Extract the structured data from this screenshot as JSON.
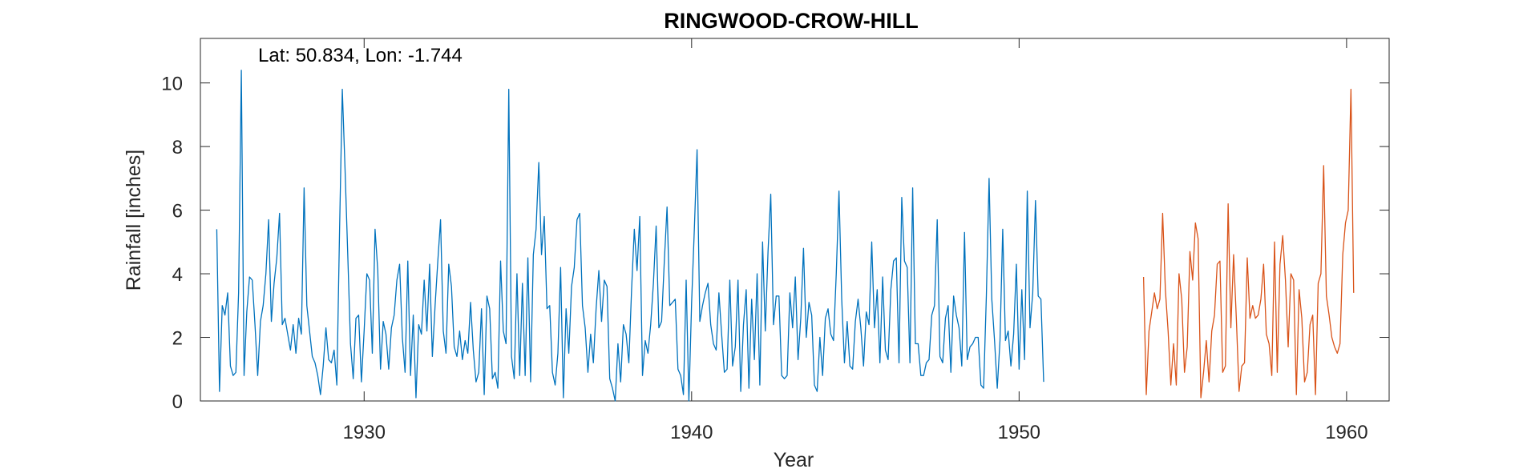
{
  "chart_data": {
    "type": "line",
    "title": "RINGWOOD-CROW-HILL",
    "annotation": "Lat: 50.834, Lon: -1.744",
    "xlabel": "Year",
    "ylabel": "Rainfall [inches]",
    "xlim": [
      1925,
      1961.3
    ],
    "ylim": [
      0,
      11.4
    ],
    "xticks": [
      1930,
      1940,
      1950,
      1960
    ],
    "yticks": [
      0,
      2,
      4,
      6,
      8,
      10
    ],
    "grid": false,
    "series": [
      {
        "color": "#0072BD",
        "x_start": 1925.5,
        "x_step": 0.0833333,
        "values": [
          5.4,
          0.3,
          3.0,
          2.7,
          3.4,
          1.1,
          0.8,
          0.9,
          3.4,
          10.4,
          0.8,
          2.8,
          3.9,
          3.8,
          2.4,
          0.8,
          2.5,
          3.0,
          4.0,
          5.7,
          2.5,
          3.7,
          4.5,
          5.9,
          2.4,
          2.6,
          2.1,
          1.6,
          2.4,
          1.5,
          2.6,
          2.1,
          6.7,
          3.0,
          2.2,
          1.4,
          1.2,
          0.8,
          0.2,
          1.1,
          2.3,
          1.3,
          1.2,
          1.6,
          0.5,
          5.4,
          9.8,
          7.3,
          4.6,
          1.8,
          0.7,
          2.6,
          2.7,
          0.6,
          2.2,
          4.0,
          3.8,
          1.5,
          5.4,
          4.1,
          1.0,
          2.5,
          2.1,
          1.0,
          2.3,
          2.7,
          3.8,
          4.3,
          2.0,
          0.9,
          4.4,
          0.8,
          2.7,
          0.1,
          2.4,
          2.1,
          3.8,
          2.2,
          4.3,
          1.4,
          3.0,
          4.4,
          5.7,
          2.2,
          1.5,
          4.3,
          3.6,
          1.7,
          1.4,
          2.2,
          1.3,
          1.9,
          1.5,
          3.1,
          1.6,
          0.6,
          0.9,
          2.9,
          0.2,
          3.3,
          2.9,
          0.7,
          0.9,
          0.4,
          4.4,
          2.2,
          1.8,
          9.8,
          1.4,
          0.7,
          4.0,
          0.8,
          3.7,
          0.8,
          4.5,
          0.6,
          4.6,
          5.4,
          7.5,
          4.6,
          5.8,
          2.9,
          3.0,
          0.9,
          0.5,
          1.5,
          4.2,
          0.1,
          2.9,
          1.5,
          3.6,
          4.2,
          5.7,
          5.9,
          3.0,
          2.3,
          0.9,
          2.1,
          1.2,
          2.9,
          4.1,
          2.5,
          3.8,
          3.6,
          0.7,
          0.4,
          0.0,
          1.8,
          0.6,
          2.4,
          2.1,
          1.2,
          3.5,
          5.4,
          4.1,
          5.8,
          0.8,
          1.9,
          1.5,
          2.4,
          3.7,
          5.5,
          2.3,
          2.5,
          4.4,
          6.1,
          3.0,
          3.1,
          3.2,
          1.0,
          0.8,
          0.2,
          3.8,
          0.0,
          3.1,
          5.4,
          7.9,
          2.5,
          3.0,
          3.4,
          3.7,
          2.4,
          1.8,
          1.6,
          3.4,
          2.1,
          0.9,
          1.0,
          3.8,
          1.1,
          1.7,
          3.8,
          0.3,
          2.4,
          3.5,
          0.4,
          3.2,
          1.3,
          4.0,
          0.5,
          5.0,
          2.2,
          4.7,
          6.5,
          2.4,
          3.3,
          3.3,
          0.8,
          0.7,
          0.8,
          3.4,
          2.3,
          3.9,
          1.3,
          2.6,
          4.8,
          2.0,
          3.1,
          2.7,
          0.5,
          0.3,
          2.0,
          0.8,
          2.6,
          2.9,
          2.1,
          1.9,
          4.0,
          6.6,
          3.2,
          1.2,
          2.5,
          1.1,
          1.0,
          2.5,
          3.2,
          2.3,
          1.1,
          2.8,
          2.4,
          5.0,
          2.3,
          3.5,
          1.2,
          3.9,
          1.6,
          1.3,
          3.5,
          4.4,
          4.5,
          1.2,
          6.4,
          4.4,
          4.2,
          1.2,
          6.7,
          1.8,
          1.8,
          0.8,
          0.8,
          1.2,
          1.3,
          2.7,
          3.0,
          5.7,
          1.4,
          1.2,
          2.6,
          3.0,
          0.9,
          3.3,
          2.7,
          2.3,
          1.1,
          5.3,
          1.3,
          1.7,
          1.8,
          2.0,
          2.0,
          0.5,
          0.4,
          3.3,
          7.0,
          3.2,
          1.9,
          0.4,
          1.9,
          5.4,
          1.9,
          2.2,
          1.1,
          2.1,
          4.3,
          1.0,
          3.5,
          1.3,
          6.6,
          2.3,
          3.4,
          6.3,
          3.3,
          3.2,
          0.6
        ]
      },
      {
        "color": "#D95319",
        "x_start": 1953.8,
        "x_step": 0.0833333,
        "values": [
          3.9,
          0.2,
          2.2,
          2.8,
          3.4,
          2.9,
          3.2,
          5.9,
          3.5,
          2.2,
          0.5,
          1.8,
          0.5,
          4.0,
          3.2,
          0.9,
          1.7,
          4.7,
          3.8,
          5.6,
          5.1,
          0.1,
          0.9,
          1.9,
          0.6,
          2.2,
          2.7,
          4.3,
          4.4,
          0.9,
          1.1,
          6.2,
          2.3,
          4.6,
          2.6,
          0.3,
          1.1,
          1.2,
          4.5,
          2.6,
          3.0,
          2.6,
          2.7,
          3.2,
          4.3,
          2.1,
          1.8,
          0.8,
          5.0,
          0.9,
          4.3,
          5.2,
          3.8,
          1.7,
          4.0,
          3.8,
          0.2,
          3.5,
          2.6,
          0.6,
          0.9,
          2.4,
          2.7,
          0.2,
          3.7,
          4.0,
          7.4,
          3.3,
          2.7,
          2.0,
          1.7,
          1.5,
          1.8,
          4.6,
          5.6,
          6.0,
          9.8,
          3.4
        ]
      }
    ]
  }
}
